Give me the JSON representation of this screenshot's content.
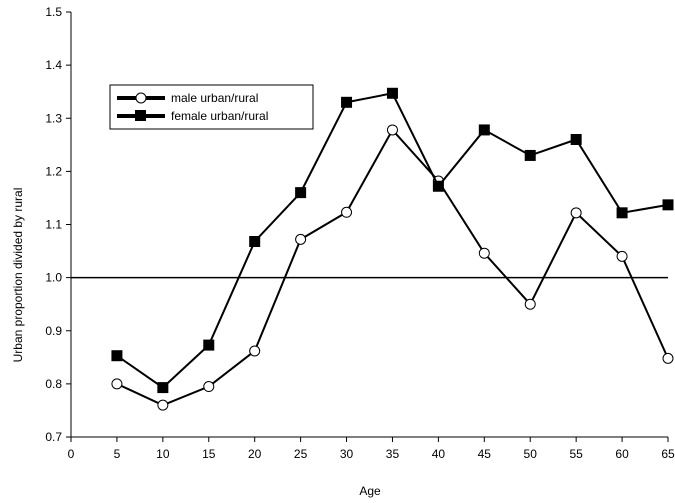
{
  "chart_data": {
    "type": "line",
    "xlabel": "Age",
    "ylabel": "Urban proportion divided by rural",
    "xlim": [
      0,
      65
    ],
    "ylim": [
      0.7,
      1.5
    ],
    "x_ticks": [
      0,
      5,
      10,
      15,
      20,
      25,
      30,
      35,
      40,
      45,
      50,
      55,
      60,
      65
    ],
    "y_ticks": [
      0.7,
      0.8,
      0.9,
      1.0,
      1.1,
      1.2,
      1.3,
      1.4,
      1.5
    ],
    "x_tick_labels": [
      "0",
      "5",
      "10",
      "15",
      "20",
      "25",
      "30",
      "35",
      "40",
      "45",
      "50",
      "55",
      "60",
      "65"
    ],
    "y_tick_labels": [
      "0.7",
      "0.8",
      "0.9",
      "1.0",
      "1.1",
      "1.2",
      "1.3",
      "1.4",
      "1.5"
    ],
    "reference_line": 1.0,
    "grid": false,
    "legend_position": "upper-left",
    "x": [
      5,
      10,
      15,
      20,
      25,
      30,
      35,
      40,
      45,
      50,
      55,
      60,
      65
    ],
    "series": [
      {
        "name": "male urban/rural",
        "marker": "open-circle",
        "color": "#000000",
        "values": [
          0.8,
          0.76,
          0.795,
          0.862,
          1.072,
          1.123,
          1.278,
          1.182,
          1.046,
          0.95,
          1.122,
          1.04,
          0.848
        ]
      },
      {
        "name": "female urban/rural",
        "marker": "filled-square",
        "color": "#000000",
        "values": [
          0.853,
          0.793,
          0.873,
          1.068,
          1.16,
          1.33,
          1.347,
          1.172,
          1.278,
          1.23,
          1.26,
          1.122,
          1.137
        ]
      }
    ]
  }
}
